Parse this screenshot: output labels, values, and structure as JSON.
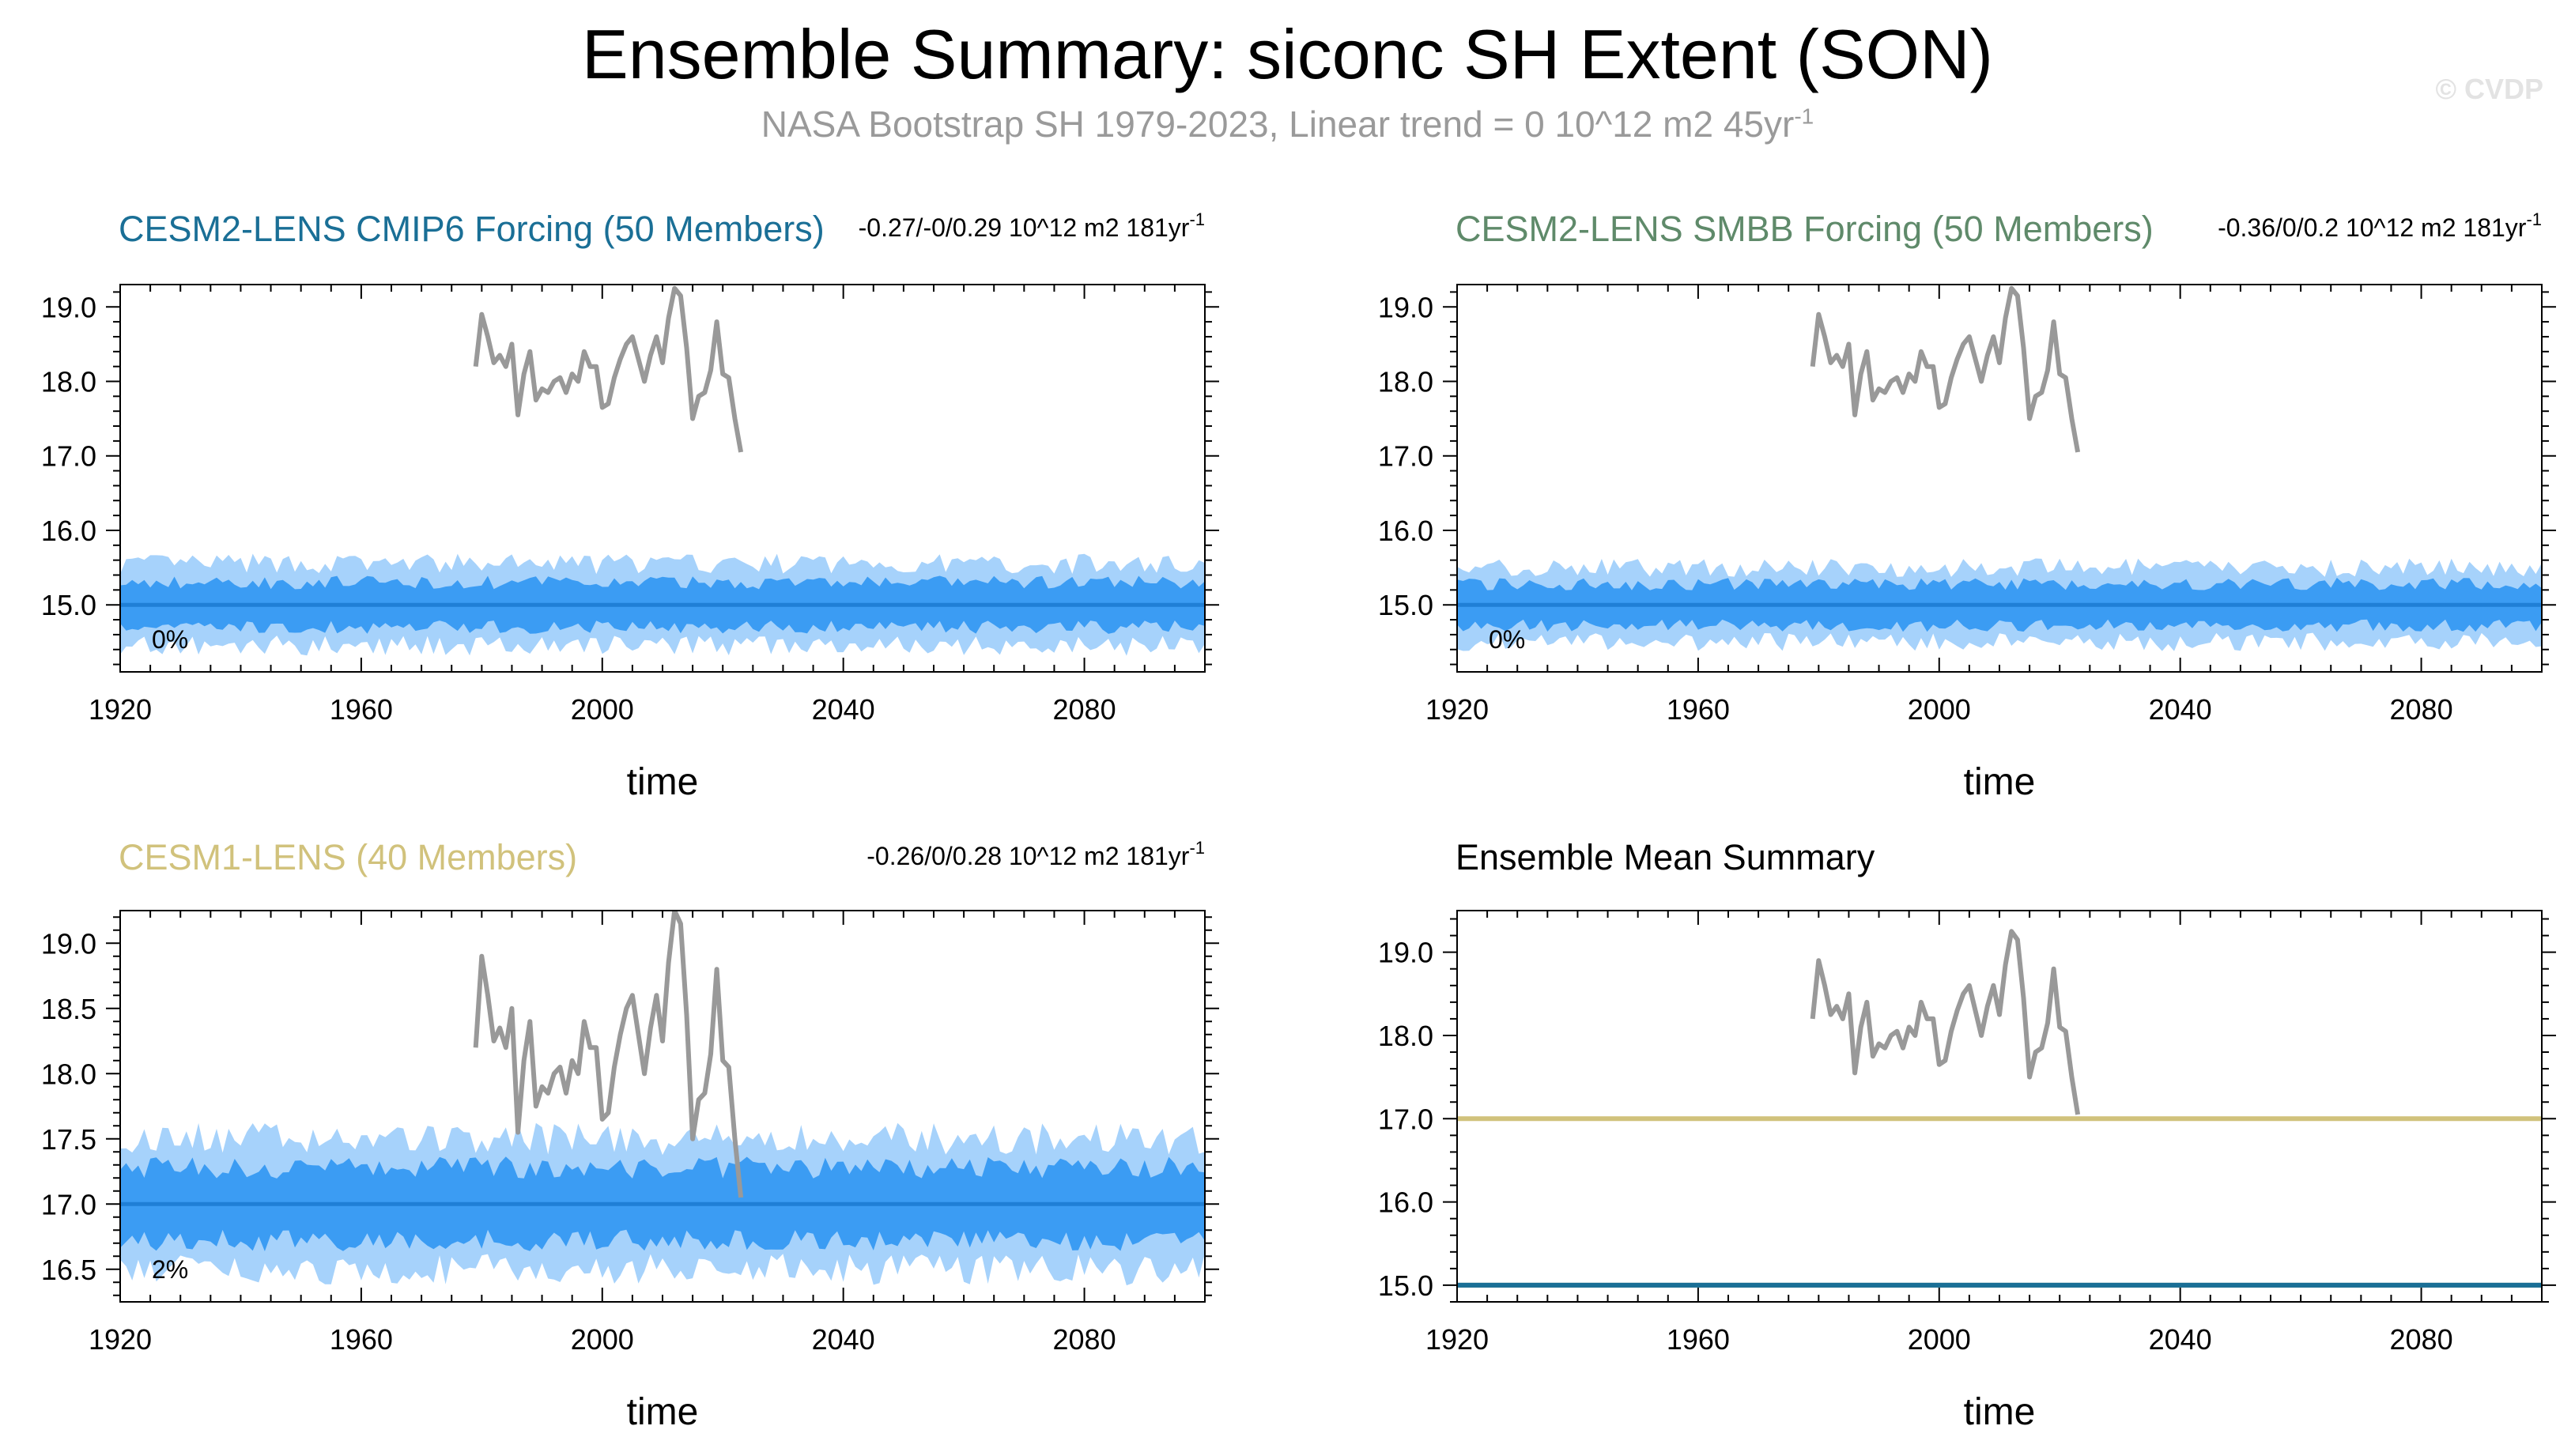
{
  "figure": {
    "title": "Ensemble Summary: siconc SH Extent (SON)",
    "subtitle": "NASA Bootstrap SH 1979-2023, Linear trend = 0 10^12 m2 45yr",
    "subtitle_sup": "-1",
    "watermark": "© CVDP"
  },
  "chart_data": [
    {
      "id": "p1",
      "type": "area",
      "title": "CESM2-LENS CMIP6 Forcing (50 Members)",
      "title_color": "#1a6f96",
      "stats": "-0.27/-0/0.29 10^12 m2 181yr",
      "stats_sup": "-1",
      "xlabel": "time",
      "xlim": [
        1920,
        2100
      ],
      "ylim": [
        14.1,
        19.3
      ],
      "xticks": [
        1920,
        1960,
        2000,
        2040,
        2080
      ],
      "yticks": [
        15.0,
        16.0,
        17.0,
        18.0,
        19.0
      ],
      "ytick_labels": [
        "15.0",
        "16.0",
        "17.0",
        "18.0",
        "19.0"
      ],
      "percent_label": "0%",
      "ensemble_mean": 15.0,
      "inner_halfwidth": 0.3,
      "outer_halfwidth": 0.55
    },
    {
      "id": "p2",
      "type": "area",
      "title": "CESM2-LENS SMBB Forcing (50 Members)",
      "title_color": "#5f8a6a",
      "stats": "-0.36/0/0.2 10^12 m2 181yr",
      "stats_sup": "-1",
      "xlabel": "time",
      "xlim": [
        1920,
        2100
      ],
      "ylim": [
        14.1,
        19.3
      ],
      "xticks": [
        1920,
        1960,
        2000,
        2040,
        2080
      ],
      "yticks": [
        15.0,
        16.0,
        17.0,
        18.0,
        19.0
      ],
      "ytick_labels": [
        "15.0",
        "16.0",
        "17.0",
        "18.0",
        "19.0"
      ],
      "percent_label": "0%",
      "ensemble_mean": 15.0,
      "inner_halfwidth": 0.28,
      "outer_halfwidth": 0.5
    },
    {
      "id": "p3",
      "type": "area",
      "title": "CESM1-LENS (40 Members)",
      "title_color": "#d1c27c",
      "stats": "-0.26/0/0.28 10^12 m2 181yr",
      "stats_sup": "-1",
      "xlabel": "time",
      "xlim": [
        1920,
        2100
      ],
      "ylim": [
        16.25,
        19.25
      ],
      "xticks": [
        1920,
        1960,
        2000,
        2040,
        2080
      ],
      "yticks": [
        16.5,
        17.0,
        17.5,
        18.0,
        18.5,
        19.0
      ],
      "ytick_labels": [
        "16.5",
        "17.0",
        "17.5",
        "18.0",
        "18.5",
        "19.0"
      ],
      "percent_label": "2%",
      "ensemble_mean": 17.0,
      "inner_halfwidth": 0.28,
      "outer_halfwidth": 0.5
    },
    {
      "id": "p4",
      "type": "line",
      "title": "Ensemble Mean Summary",
      "title_color": "#000000",
      "xlabel": "time",
      "xlim": [
        1920,
        2100
      ],
      "ylim": [
        14.8,
        19.5
      ],
      "xticks": [
        1920,
        1960,
        2000,
        2040,
        2080
      ],
      "yticks": [
        15.0,
        16.0,
        17.0,
        18.0,
        19.0
      ],
      "ytick_labels": [
        "15.0",
        "16.0",
        "17.0",
        "18.0",
        "19.0"
      ],
      "series": [
        {
          "values": [
            17.0,
            17.0
          ],
          "x": [
            1920,
            2100
          ],
          "color": "#d1c27c"
        },
        {
          "values": [
            15.0,
            15.0
          ],
          "x": [
            1920,
            2100
          ],
          "color": "#5f8a6a"
        },
        {
          "values": [
            15.0,
            15.0
          ],
          "x": [
            1920,
            2100
          ],
          "color": "#1a6f96"
        }
      ]
    }
  ],
  "observations": {
    "color": "#999999",
    "x": [
      1979,
      1980,
      1981,
      1982,
      1983,
      1984,
      1985,
      1986,
      1987,
      1988,
      1989,
      1990,
      1991,
      1992,
      1993,
      1994,
      1995,
      1996,
      1997,
      1998,
      1999,
      2000,
      2001,
      2002,
      2003,
      2004,
      2005,
      2006,
      2007,
      2008,
      2009,
      2010,
      2011,
      2012,
      2013,
      2014,
      2015,
      2016,
      2017,
      2018,
      2019,
      2020,
      2021,
      2022,
      2023
    ],
    "values": [
      18.2,
      18.9,
      18.6,
      18.25,
      18.35,
      18.2,
      18.5,
      17.55,
      18.1,
      18.4,
      17.75,
      17.9,
      17.85,
      18.0,
      18.05,
      17.85,
      18.1,
      18.0,
      18.4,
      18.2,
      18.2,
      17.65,
      17.7,
      18.05,
      18.3,
      18.5,
      18.6,
      18.3,
      18.0,
      18.35,
      18.6,
      18.25,
      18.85,
      19.25,
      19.15,
      18.45,
      17.5,
      17.8,
      17.85,
      18.15,
      18.8,
      18.1,
      18.05,
      17.5,
      17.05
    ]
  }
}
